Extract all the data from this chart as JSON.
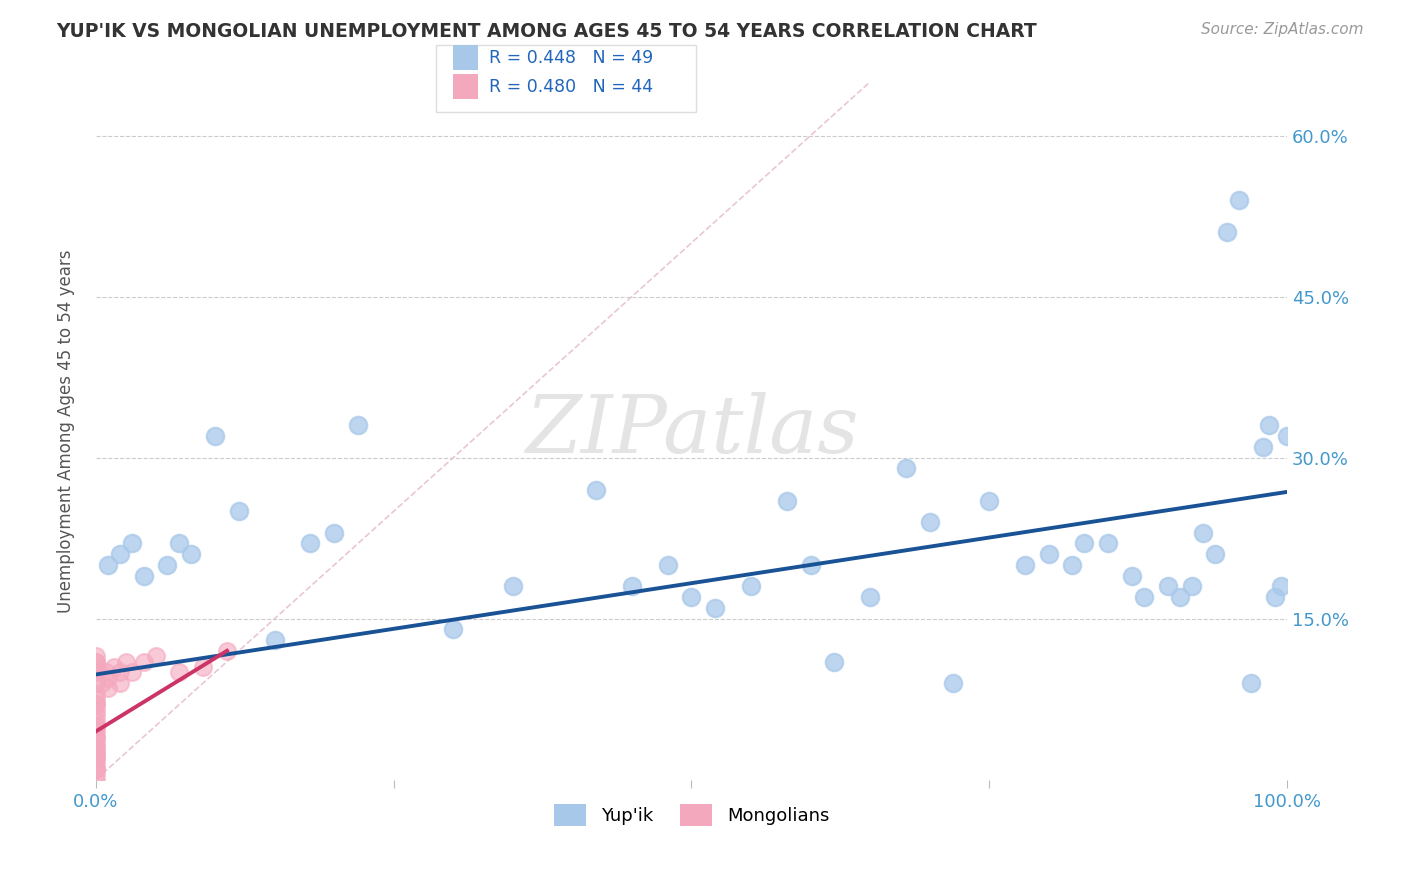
{
  "title": "YUP'IK VS MONGOLIAN UNEMPLOYMENT AMONG AGES 45 TO 54 YEARS CORRELATION CHART",
  "source": "Source: ZipAtlas.com",
  "ylabel": "Unemployment Among Ages 45 to 54 years",
  "xlim": [
    0,
    1.0
  ],
  "ylim": [
    0,
    0.65
  ],
  "xticks": [
    0.0,
    0.25,
    0.5,
    0.75,
    1.0
  ],
  "xticklabels": [
    "0.0%",
    "",
    "",
    "",
    "100.0%"
  ],
  "yticks": [
    0.15,
    0.3,
    0.45,
    0.6
  ],
  "yticklabels": [
    "15.0%",
    "30.0%",
    "45.0%",
    "60.0%"
  ],
  "grid_color": "#cccccc",
  "background_color": "#ffffff",
  "legend_r1": "R = 0.448",
  "legend_n1": "N = 49",
  "legend_r2": "R = 0.480",
  "legend_n2": "N = 44",
  "legend_label1": "Yup'ik",
  "legend_label2": "Mongolians",
  "blue_color": "#a8c8ea",
  "pink_color": "#f4a8be",
  "trend_blue": "#1a5296",
  "trend_pink": "#cc3366",
  "diag_color": "#e8c0d0",
  "yupik_x": [
    0.01,
    0.02,
    0.03,
    0.04,
    0.06,
    0.07,
    0.08,
    0.1,
    0.12,
    0.15,
    0.18,
    0.2,
    0.22,
    0.3,
    0.35,
    0.42,
    0.45,
    0.48,
    0.5,
    0.52,
    0.55,
    0.58,
    0.6,
    0.62,
    0.65,
    0.68,
    0.7,
    0.72,
    0.75,
    0.78,
    0.8,
    0.82,
    0.83,
    0.85,
    0.87,
    0.88,
    0.9,
    0.91,
    0.92,
    0.93,
    0.94,
    0.95,
    0.96,
    0.97,
    0.98,
    0.985,
    0.99,
    0.995,
    1.0
  ],
  "yupik_y": [
    0.2,
    0.21,
    0.22,
    0.19,
    0.2,
    0.22,
    0.21,
    0.32,
    0.25,
    0.13,
    0.22,
    0.23,
    0.33,
    0.14,
    0.18,
    0.27,
    0.18,
    0.2,
    0.17,
    0.16,
    0.18,
    0.26,
    0.2,
    0.11,
    0.17,
    0.29,
    0.24,
    0.09,
    0.26,
    0.2,
    0.21,
    0.2,
    0.22,
    0.22,
    0.19,
    0.17,
    0.18,
    0.17,
    0.18,
    0.23,
    0.21,
    0.51,
    0.54,
    0.09,
    0.31,
    0.33,
    0.17,
    0.18,
    0.32
  ],
  "mongolian_x": [
    0.0,
    0.0,
    0.0,
    0.0,
    0.0,
    0.0,
    0.0,
    0.0,
    0.0,
    0.0,
    0.0,
    0.0,
    0.0,
    0.0,
    0.0,
    0.0,
    0.0,
    0.0,
    0.0,
    0.0,
    0.0,
    0.0,
    0.0,
    0.0,
    0.0,
    0.0,
    0.0,
    0.0,
    0.0,
    0.0,
    0.005,
    0.008,
    0.01,
    0.01,
    0.015,
    0.02,
    0.02,
    0.025,
    0.03,
    0.04,
    0.05,
    0.07,
    0.09,
    0.11
  ],
  "mongolian_y": [
    0.0,
    0.005,
    0.01,
    0.01,
    0.015,
    0.02,
    0.02,
    0.025,
    0.025,
    0.03,
    0.03,
    0.035,
    0.04,
    0.04,
    0.045,
    0.05,
    0.05,
    0.055,
    0.06,
    0.065,
    0.07,
    0.07,
    0.075,
    0.08,
    0.09,
    0.1,
    0.105,
    0.11,
    0.11,
    0.115,
    0.09,
    0.1,
    0.085,
    0.095,
    0.105,
    0.09,
    0.1,
    0.11,
    0.1,
    0.11,
    0.115,
    0.1,
    0.105,
    0.12
  ],
  "blue_trendline_x": [
    0.0,
    1.0
  ],
  "blue_trendline_y": [
    0.098,
    0.268
  ],
  "pink_trendline_x": [
    0.0,
    0.11
  ],
  "pink_trendline_y": [
    0.045,
    0.12
  ]
}
